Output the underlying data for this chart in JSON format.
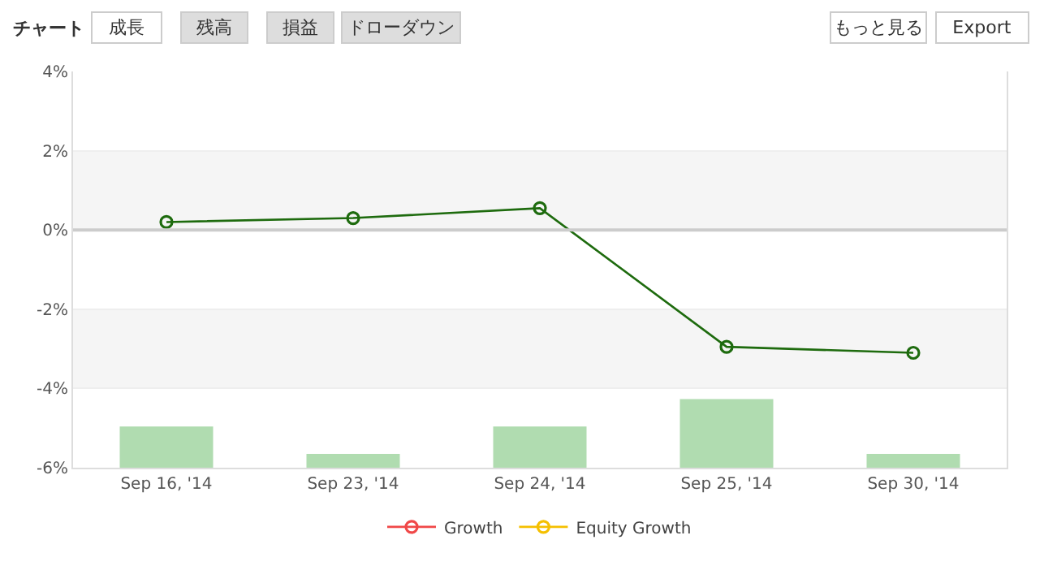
{
  "chart_data": {
    "type": "line",
    "title": "チャート",
    "annotations": [
      "成長",
      "残高",
      "損益",
      "ドローダウン",
      "もっと見る",
      "Export"
    ],
    "categories": [
      "Sep 16, '14",
      "Sep 23, '14",
      "Sep 24, '14",
      "Sep 25, '14",
      "Sep 30, '14"
    ],
    "series": [
      {
        "type": "bar",
        "color": "#b0dcb0",
        "base": [
          -6,
          -6,
          -6,
          -6,
          -6
        ],
        "values": [
          1.04,
          0.35,
          1.04,
          1.73,
          0.35
        ]
      },
      {
        "color": "#1e6b0e",
        "values": [
          0.2,
          0.3,
          0.55,
          -2.95,
          -3.1
        ]
      },
      {
        "name": "Growth",
        "color": "#f04848",
        "values": [
          null,
          null,
          null,
          null,
          null
        ]
      },
      {
        "name": "Equity Growth",
        "color": "#f5c000",
        "values": [
          null,
          null,
          null,
          null,
          null
        ]
      }
    ],
    "ylim": [
      -6,
      4
    ],
    "yticks": [
      {
        "value": -6,
        "label": "-6%"
      },
      {
        "value": -4,
        "label": "-4%"
      },
      {
        "value": -2,
        "label": "-2%"
      },
      {
        "value": 0,
        "label": "0%"
      },
      {
        "value": 2,
        "label": "2%"
      },
      {
        "value": 4,
        "label": "4%"
      }
    ],
    "bands": [
      {
        "axis": "y",
        "from": 0,
        "to": 2,
        "color": "#f5f5f5"
      },
      {
        "axis": "y",
        "from": -4,
        "to": -2,
        "color": "#f5f5f5"
      }
    ],
    "ref_lines": [
      {
        "axis": "y",
        "value": 0,
        "color": "#cccccc"
      }
    ],
    "grid": "y",
    "legend": "bottom",
    "marker": "circle",
    "line_style": "solid"
  }
}
